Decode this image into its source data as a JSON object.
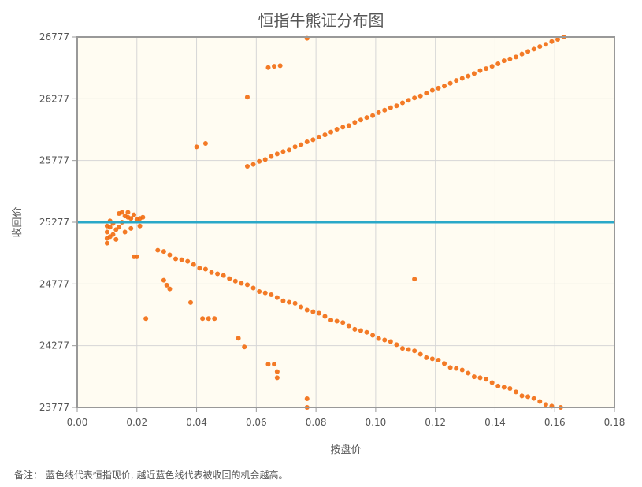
{
  "chart_data": {
    "type": "scatter",
    "title": "恒指牛熊证分布图",
    "xlabel": "按盘价",
    "ylabel": "收回价",
    "xlim": [
      0,
      0.18
    ],
    "ylim": [
      23777,
      26777
    ],
    "xticks": [
      "0.00",
      "0.02",
      "0.04",
      "0.06",
      "0.08",
      "0.10",
      "0.12",
      "0.14",
      "0.16",
      "0.18"
    ],
    "yticks": [
      "23777",
      "24277",
      "24777",
      "25277",
      "25777",
      "26277",
      "26777"
    ],
    "grid": true,
    "reference_line": {
      "y": 25277,
      "color": "#2aa8c8"
    },
    "point_color": "#f26b0f",
    "background": "#fffcf2",
    "points": [
      [
        0.01,
        25247
      ],
      [
        0.01,
        25197
      ],
      [
        0.01,
        25147
      ],
      [
        0.01,
        25107
      ],
      [
        0.011,
        25287
      ],
      [
        0.011,
        25237
      ],
      [
        0.011,
        25160
      ],
      [
        0.012,
        25267
      ],
      [
        0.012,
        25177
      ],
      [
        0.013,
        25217
      ],
      [
        0.013,
        25137
      ],
      [
        0.014,
        25347
      ],
      [
        0.014,
        25237
      ],
      [
        0.015,
        25357
      ],
      [
        0.015,
        25277
      ],
      [
        0.016,
        25327
      ],
      [
        0.016,
        25197
      ],
      [
        0.017,
        25317
      ],
      [
        0.017,
        25357
      ],
      [
        0.018,
        25307
      ],
      [
        0.018,
        25227
      ],
      [
        0.019,
        25337
      ],
      [
        0.02,
        25297
      ],
      [
        0.021,
        25307
      ],
      [
        0.021,
        25247
      ],
      [
        0.022,
        25317
      ],
      [
        0.019,
        24997
      ],
      [
        0.02,
        24997
      ],
      [
        0.027,
        25050
      ],
      [
        0.029,
        25040
      ],
      [
        0.031,
        25012
      ],
      [
        0.033,
        24980
      ],
      [
        0.035,
        24973
      ],
      [
        0.037,
        24960
      ],
      [
        0.039,
        24935
      ],
      [
        0.041,
        24905
      ],
      [
        0.043,
        24897
      ],
      [
        0.045,
        24870
      ],
      [
        0.047,
        24859
      ],
      [
        0.049,
        24845
      ],
      [
        0.051,
        24820
      ],
      [
        0.053,
        24800
      ],
      [
        0.055,
        24782
      ],
      [
        0.057,
        24770
      ],
      [
        0.059,
        24744
      ],
      [
        0.061,
        24715
      ],
      [
        0.063,
        24705
      ],
      [
        0.065,
        24690
      ],
      [
        0.067,
        24667
      ],
      [
        0.069,
        24640
      ],
      [
        0.071,
        24629
      ],
      [
        0.073,
        24620
      ],
      [
        0.075,
        24591
      ],
      [
        0.077,
        24565
      ],
      [
        0.079,
        24552
      ],
      [
        0.081,
        24540
      ],
      [
        0.083,
        24514
      ],
      [
        0.085,
        24485
      ],
      [
        0.087,
        24476
      ],
      [
        0.089,
        24465
      ],
      [
        0.091,
        24438
      ],
      [
        0.093,
        24410
      ],
      [
        0.095,
        24399
      ],
      [
        0.097,
        24385
      ],
      [
        0.099,
        24361
      ],
      [
        0.101,
        24335
      ],
      [
        0.103,
        24323
      ],
      [
        0.105,
        24310
      ],
      [
        0.107,
        24285
      ],
      [
        0.109,
        24255
      ],
      [
        0.111,
        24246
      ],
      [
        0.113,
        24235
      ],
      [
        0.115,
        24208
      ],
      [
        0.117,
        24180
      ],
      [
        0.119,
        24170
      ],
      [
        0.121,
        24160
      ],
      [
        0.123,
        24132
      ],
      [
        0.125,
        24100
      ],
      [
        0.127,
        24093
      ],
      [
        0.129,
        24080
      ],
      [
        0.131,
        24055
      ],
      [
        0.133,
        24025
      ],
      [
        0.135,
        24017
      ],
      [
        0.137,
        24005
      ],
      [
        0.139,
        23978
      ],
      [
        0.141,
        23950
      ],
      [
        0.143,
        23940
      ],
      [
        0.145,
        23930
      ],
      [
        0.147,
        23902
      ],
      [
        0.149,
        23870
      ],
      [
        0.151,
        23864
      ],
      [
        0.153,
        23850
      ],
      [
        0.155,
        23825
      ],
      [
        0.157,
        23800
      ],
      [
        0.159,
        23787
      ],
      [
        0.162,
        23777
      ],
      [
        0.057,
        25730
      ],
      [
        0.059,
        25745
      ],
      [
        0.061,
        25770
      ],
      [
        0.063,
        25785
      ],
      [
        0.065,
        25809
      ],
      [
        0.067,
        25830
      ],
      [
        0.069,
        25849
      ],
      [
        0.071,
        25862
      ],
      [
        0.073,
        25888
      ],
      [
        0.075,
        25905
      ],
      [
        0.077,
        25928
      ],
      [
        0.079,
        25945
      ],
      [
        0.081,
        25967
      ],
      [
        0.083,
        25985
      ],
      [
        0.085,
        26007
      ],
      [
        0.087,
        26030
      ],
      [
        0.089,
        26047
      ],
      [
        0.091,
        26060
      ],
      [
        0.093,
        26086
      ],
      [
        0.095,
        26105
      ],
      [
        0.097,
        26125
      ],
      [
        0.099,
        26140
      ],
      [
        0.101,
        26165
      ],
      [
        0.103,
        26185
      ],
      [
        0.105,
        26205
      ],
      [
        0.107,
        26220
      ],
      [
        0.109,
        26244
      ],
      [
        0.111,
        26265
      ],
      [
        0.113,
        26284
      ],
      [
        0.115,
        26300
      ],
      [
        0.117,
        26323
      ],
      [
        0.119,
        26345
      ],
      [
        0.121,
        26363
      ],
      [
        0.123,
        26380
      ],
      [
        0.125,
        26402
      ],
      [
        0.127,
        26425
      ],
      [
        0.129,
        26442
      ],
      [
        0.131,
        26460
      ],
      [
        0.133,
        26481
      ],
      [
        0.135,
        26505
      ],
      [
        0.137,
        26521
      ],
      [
        0.139,
        26540
      ],
      [
        0.141,
        26560
      ],
      [
        0.143,
        26585
      ],
      [
        0.145,
        26600
      ],
      [
        0.147,
        26615
      ],
      [
        0.149,
        26639
      ],
      [
        0.151,
        26660
      ],
      [
        0.153,
        26679
      ],
      [
        0.155,
        26700
      ],
      [
        0.157,
        26718
      ],
      [
        0.159,
        26740
      ],
      [
        0.161,
        26758
      ],
      [
        0.163,
        26777
      ],
      [
        0.04,
        25887
      ],
      [
        0.043,
        25915
      ],
      [
        0.057,
        26290
      ],
      [
        0.064,
        26530
      ],
      [
        0.066,
        26540
      ],
      [
        0.068,
        26545
      ],
      [
        0.077,
        26767
      ],
      [
        0.113,
        24817
      ],
      [
        0.023,
        24497
      ],
      [
        0.029,
        24807
      ],
      [
        0.03,
        24767
      ],
      [
        0.031,
        24737
      ],
      [
        0.038,
        24627
      ],
      [
        0.042,
        24497
      ],
      [
        0.044,
        24497
      ],
      [
        0.046,
        24497
      ],
      [
        0.054,
        24337
      ],
      [
        0.056,
        24267
      ],
      [
        0.064,
        24127
      ],
      [
        0.066,
        24127
      ],
      [
        0.067,
        24067
      ],
      [
        0.067,
        24017
      ],
      [
        0.077,
        23847
      ],
      [
        0.077,
        23777
      ]
    ]
  },
  "note": "备注： 蓝色线代表恒指现价, 越近蓝色线代表被收回的机会越高。"
}
